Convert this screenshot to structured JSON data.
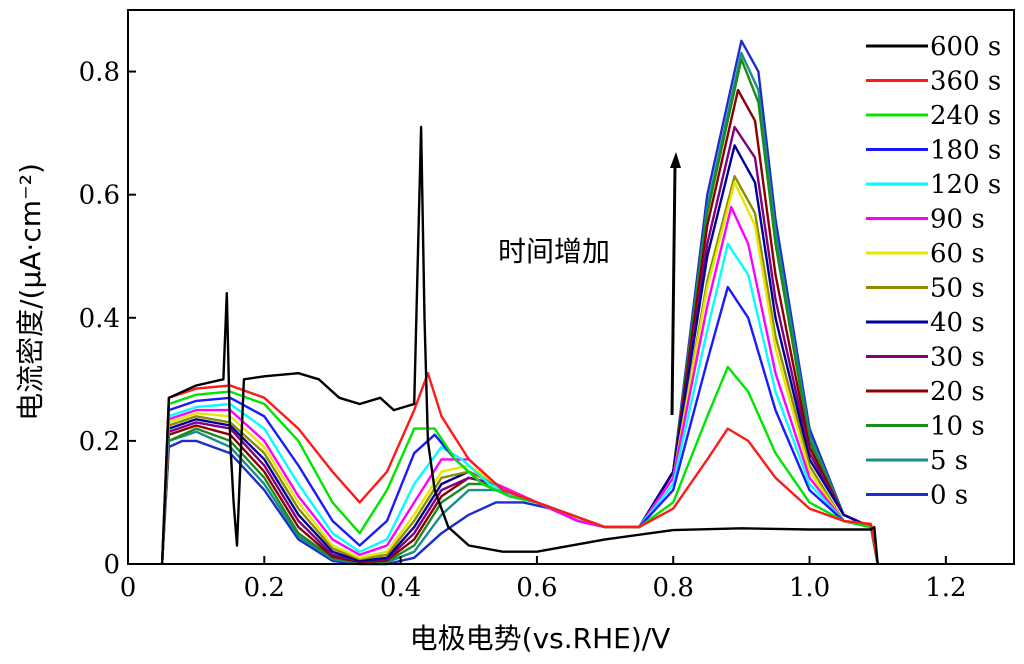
{
  "chart_data": {
    "type": "line",
    "xlabel": "电极电势(vs.RHE)/V",
    "ylabel": "电流密度/(μA·cm⁻²)",
    "xlim": [
      0,
      1.3
    ],
    "ylim": [
      0,
      0.9
    ],
    "x_ticks": [
      "0",
      "0.2",
      "0.4",
      "0.6",
      "0.8",
      "1.0",
      "1.2"
    ],
    "x_tick_values": [
      0,
      0.2,
      0.4,
      0.6,
      0.8,
      1.0,
      1.2
    ],
    "y_ticks": [
      "0",
      "0.2",
      "0.4",
      "0.6",
      "0.8"
    ],
    "y_tick_values": [
      0,
      0.2,
      0.4,
      0.6,
      0.8
    ],
    "grid": false,
    "legend_position": "top-right",
    "annotation": "时间增加",
    "series": [
      {
        "name": "600 s",
        "color": "#000000",
        "x": [
          0.05,
          0.06,
          0.1,
          0.14,
          0.145,
          0.15,
          0.155,
          0.16,
          0.17,
          0.2,
          0.25,
          0.28,
          0.31,
          0.34,
          0.37,
          0.39,
          0.42,
          0.43,
          0.435,
          0.44,
          0.45,
          0.47,
          0.5,
          0.55,
          0.6,
          0.7,
          0.8,
          0.9,
          1.0,
          1.09,
          1.095,
          1.1
        ],
        "y": [
          0.0,
          0.27,
          0.29,
          0.3,
          0.44,
          0.2,
          0.1,
          0.03,
          0.3,
          0.305,
          0.31,
          0.3,
          0.27,
          0.26,
          0.27,
          0.25,
          0.26,
          0.71,
          0.4,
          0.2,
          0.12,
          0.06,
          0.03,
          0.02,
          0.02,
          0.04,
          0.055,
          0.058,
          0.056,
          0.056,
          0.06,
          0.0
        ]
      },
      {
        "name": "360 s",
        "color": "#ff1a1a",
        "x": [
          0.05,
          0.06,
          0.1,
          0.15,
          0.2,
          0.25,
          0.3,
          0.34,
          0.38,
          0.42,
          0.44,
          0.46,
          0.5,
          0.55,
          0.6,
          0.65,
          0.7,
          0.75,
          0.8,
          0.85,
          0.88,
          0.91,
          0.95,
          1.0,
          1.05,
          1.09,
          1.1
        ],
        "y": [
          0.0,
          0.27,
          0.285,
          0.29,
          0.27,
          0.22,
          0.15,
          0.1,
          0.15,
          0.25,
          0.31,
          0.24,
          0.17,
          0.12,
          0.1,
          0.08,
          0.06,
          0.06,
          0.09,
          0.17,
          0.22,
          0.2,
          0.14,
          0.09,
          0.07,
          0.065,
          0.0
        ]
      },
      {
        "name": "240 s",
        "color": "#00e400",
        "x": [
          0.05,
          0.06,
          0.1,
          0.15,
          0.2,
          0.25,
          0.3,
          0.34,
          0.38,
          0.42,
          0.45,
          0.48,
          0.52,
          0.56,
          0.6,
          0.65,
          0.7,
          0.75,
          0.8,
          0.85,
          0.88,
          0.91,
          0.95,
          1.0,
          1.05,
          1.09,
          1.1
        ],
        "y": [
          0.0,
          0.26,
          0.275,
          0.28,
          0.26,
          0.2,
          0.1,
          0.05,
          0.12,
          0.22,
          0.22,
          0.17,
          0.13,
          0.11,
          0.1,
          0.08,
          0.06,
          0.06,
          0.1,
          0.24,
          0.32,
          0.28,
          0.18,
          0.1,
          0.07,
          0.06,
          0.0
        ]
      },
      {
        "name": "180 s",
        "color": "#1a1aff",
        "x": [
          0.05,
          0.06,
          0.1,
          0.15,
          0.2,
          0.25,
          0.3,
          0.34,
          0.38,
          0.42,
          0.45,
          0.48,
          0.52,
          0.56,
          0.6,
          0.65,
          0.7,
          0.75,
          0.8,
          0.85,
          0.88,
          0.91,
          0.95,
          1.0,
          1.05,
          1.09,
          1.1
        ],
        "y": [
          0.0,
          0.25,
          0.265,
          0.27,
          0.24,
          0.16,
          0.07,
          0.03,
          0.07,
          0.18,
          0.21,
          0.17,
          0.13,
          0.11,
          0.1,
          0.08,
          0.06,
          0.06,
          0.12,
          0.33,
          0.45,
          0.4,
          0.25,
          0.12,
          0.07,
          0.06,
          0.0
        ]
      },
      {
        "name": "120 s",
        "color": "#00ffff",
        "x": [
          0.05,
          0.06,
          0.1,
          0.15,
          0.2,
          0.25,
          0.3,
          0.34,
          0.38,
          0.42,
          0.46,
          0.49,
          0.53,
          0.57,
          0.6,
          0.65,
          0.7,
          0.75,
          0.8,
          0.85,
          0.88,
          0.91,
          0.95,
          1.0,
          1.05,
          1.09,
          1.1
        ],
        "y": [
          0.0,
          0.24,
          0.255,
          0.26,
          0.22,
          0.13,
          0.05,
          0.02,
          0.04,
          0.13,
          0.19,
          0.17,
          0.13,
          0.11,
          0.1,
          0.08,
          0.06,
          0.06,
          0.13,
          0.38,
          0.52,
          0.47,
          0.28,
          0.13,
          0.07,
          0.06,
          0.0
        ]
      },
      {
        "name": "90 s",
        "color": "#ff00ff",
        "x": [
          0.05,
          0.06,
          0.1,
          0.15,
          0.2,
          0.25,
          0.3,
          0.34,
          0.38,
          0.42,
          0.46,
          0.5,
          0.54,
          0.58,
          0.62,
          0.66,
          0.7,
          0.75,
          0.8,
          0.85,
          0.885,
          0.91,
          0.95,
          1.0,
          1.05,
          1.09,
          1.1
        ],
        "y": [
          0.0,
          0.235,
          0.25,
          0.25,
          0.2,
          0.11,
          0.04,
          0.015,
          0.03,
          0.1,
          0.17,
          0.17,
          0.13,
          0.11,
          0.09,
          0.07,
          0.06,
          0.06,
          0.14,
          0.42,
          0.58,
          0.52,
          0.31,
          0.14,
          0.07,
          0.06,
          0.0
        ]
      },
      {
        "name": "60 s",
        "color": "#e6e600",
        "x": [
          0.05,
          0.06,
          0.1,
          0.15,
          0.2,
          0.25,
          0.3,
          0.34,
          0.38,
          0.42,
          0.46,
          0.5,
          0.54,
          0.58,
          0.62,
          0.66,
          0.7,
          0.75,
          0.8,
          0.85,
          0.89,
          0.92,
          0.95,
          1.0,
          1.05,
          1.09,
          1.1
        ],
        "y": [
          0.0,
          0.23,
          0.245,
          0.24,
          0.19,
          0.1,
          0.03,
          0.01,
          0.02,
          0.08,
          0.15,
          0.16,
          0.13,
          0.11,
          0.09,
          0.07,
          0.06,
          0.06,
          0.14,
          0.45,
          0.62,
          0.55,
          0.35,
          0.15,
          0.07,
          0.06,
          0.0
        ]
      },
      {
        "name": "50 s",
        "color": "#8c8c00",
        "x": [
          0.05,
          0.06,
          0.1,
          0.15,
          0.2,
          0.25,
          0.3,
          0.34,
          0.38,
          0.42,
          0.46,
          0.5,
          0.54,
          0.58,
          0.62,
          0.66,
          0.7,
          0.75,
          0.8,
          0.85,
          0.89,
          0.92,
          0.95,
          1.0,
          1.05,
          1.09,
          1.1
        ],
        "y": [
          0.0,
          0.225,
          0.24,
          0.23,
          0.18,
          0.09,
          0.025,
          0.008,
          0.015,
          0.07,
          0.14,
          0.15,
          0.13,
          0.11,
          0.09,
          0.07,
          0.06,
          0.06,
          0.14,
          0.46,
          0.63,
          0.57,
          0.37,
          0.16,
          0.07,
          0.06,
          0.0
        ]
      },
      {
        "name": "40 s",
        "color": "#000099",
        "x": [
          0.05,
          0.06,
          0.1,
          0.15,
          0.2,
          0.25,
          0.3,
          0.34,
          0.38,
          0.42,
          0.46,
          0.5,
          0.54,
          0.58,
          0.62,
          0.66,
          0.7,
          0.75,
          0.8,
          0.85,
          0.89,
          0.92,
          0.95,
          1.0,
          1.05,
          1.09,
          1.1
        ],
        "y": [
          0.0,
          0.22,
          0.235,
          0.225,
          0.17,
          0.08,
          0.02,
          0.005,
          0.01,
          0.06,
          0.13,
          0.15,
          0.13,
          0.11,
          0.09,
          0.07,
          0.06,
          0.06,
          0.15,
          0.5,
          0.68,
          0.62,
          0.4,
          0.17,
          0.08,
          0.06,
          0.0
        ]
      },
      {
        "name": "30 s",
        "color": "#800080",
        "x": [
          0.05,
          0.06,
          0.1,
          0.15,
          0.2,
          0.25,
          0.3,
          0.34,
          0.38,
          0.42,
          0.46,
          0.5,
          0.54,
          0.58,
          0.62,
          0.66,
          0.7,
          0.75,
          0.8,
          0.85,
          0.89,
          0.92,
          0.95,
          1.0,
          1.05,
          1.09,
          1.1
        ],
        "y": [
          0.0,
          0.215,
          0.23,
          0.22,
          0.16,
          0.07,
          0.015,
          0.004,
          0.008,
          0.05,
          0.12,
          0.14,
          0.13,
          0.11,
          0.09,
          0.07,
          0.06,
          0.06,
          0.15,
          0.52,
          0.71,
          0.66,
          0.43,
          0.18,
          0.08,
          0.06,
          0.0
        ]
      },
      {
        "name": "20 s",
        "color": "#8b0000",
        "x": [
          0.05,
          0.06,
          0.1,
          0.15,
          0.2,
          0.25,
          0.3,
          0.34,
          0.38,
          0.42,
          0.46,
          0.5,
          0.54,
          0.58,
          0.62,
          0.66,
          0.7,
          0.75,
          0.8,
          0.85,
          0.895,
          0.92,
          0.95,
          1.0,
          1.05,
          1.09,
          1.1
        ],
        "y": [
          0.0,
          0.21,
          0.225,
          0.21,
          0.15,
          0.06,
          0.012,
          0.003,
          0.006,
          0.04,
          0.11,
          0.14,
          0.13,
          0.11,
          0.09,
          0.07,
          0.06,
          0.06,
          0.15,
          0.55,
          0.77,
          0.72,
          0.47,
          0.19,
          0.08,
          0.06,
          0.0
        ]
      },
      {
        "name": "10 s",
        "color": "#1a8c1a",
        "x": [
          0.05,
          0.06,
          0.1,
          0.15,
          0.2,
          0.25,
          0.3,
          0.34,
          0.38,
          0.42,
          0.46,
          0.5,
          0.54,
          0.58,
          0.62,
          0.66,
          0.7,
          0.75,
          0.8,
          0.85,
          0.9,
          0.925,
          0.95,
          1.0,
          1.05,
          1.09,
          1.1
        ],
        "y": [
          0.0,
          0.2,
          0.22,
          0.2,
          0.14,
          0.05,
          0.01,
          0.002,
          0.004,
          0.03,
          0.1,
          0.13,
          0.13,
          0.11,
          0.09,
          0.07,
          0.06,
          0.06,
          0.15,
          0.57,
          0.82,
          0.75,
          0.52,
          0.2,
          0.08,
          0.06,
          0.0
        ]
      },
      {
        "name": "5 s",
        "color": "#1a8c8c",
        "x": [
          0.05,
          0.06,
          0.1,
          0.15,
          0.2,
          0.25,
          0.3,
          0.34,
          0.38,
          0.42,
          0.46,
          0.5,
          0.54,
          0.58,
          0.62,
          0.66,
          0.7,
          0.75,
          0.8,
          0.85,
          0.9,
          0.925,
          0.95,
          1.0,
          1.05,
          1.09,
          1.1
        ],
        "y": [
          0.0,
          0.2,
          0.215,
          0.19,
          0.13,
          0.045,
          0.008,
          0.001,
          0.003,
          0.02,
          0.08,
          0.12,
          0.12,
          0.11,
          0.09,
          0.07,
          0.06,
          0.06,
          0.15,
          0.58,
          0.83,
          0.77,
          0.54,
          0.21,
          0.08,
          0.06,
          0.0
        ]
      },
      {
        "name": "0 s",
        "color": "#1a2ecc",
        "x": [
          0.05,
          0.06,
          0.08,
          0.1,
          0.15,
          0.2,
          0.25,
          0.3,
          0.34,
          0.38,
          0.42,
          0.46,
          0.5,
          0.54,
          0.58,
          0.62,
          0.66,
          0.7,
          0.75,
          0.8,
          0.85,
          0.9,
          0.925,
          0.95,
          1.0,
          1.05,
          1.09,
          1.1
        ],
        "y": [
          0.0,
          0.19,
          0.2,
          0.2,
          0.18,
          0.12,
          0.04,
          0.005,
          0.0,
          0.0,
          0.01,
          0.05,
          0.08,
          0.1,
          0.1,
          0.09,
          0.07,
          0.06,
          0.06,
          0.15,
          0.6,
          0.85,
          0.8,
          0.56,
          0.22,
          0.08,
          0.06,
          0.0
        ]
      }
    ]
  }
}
